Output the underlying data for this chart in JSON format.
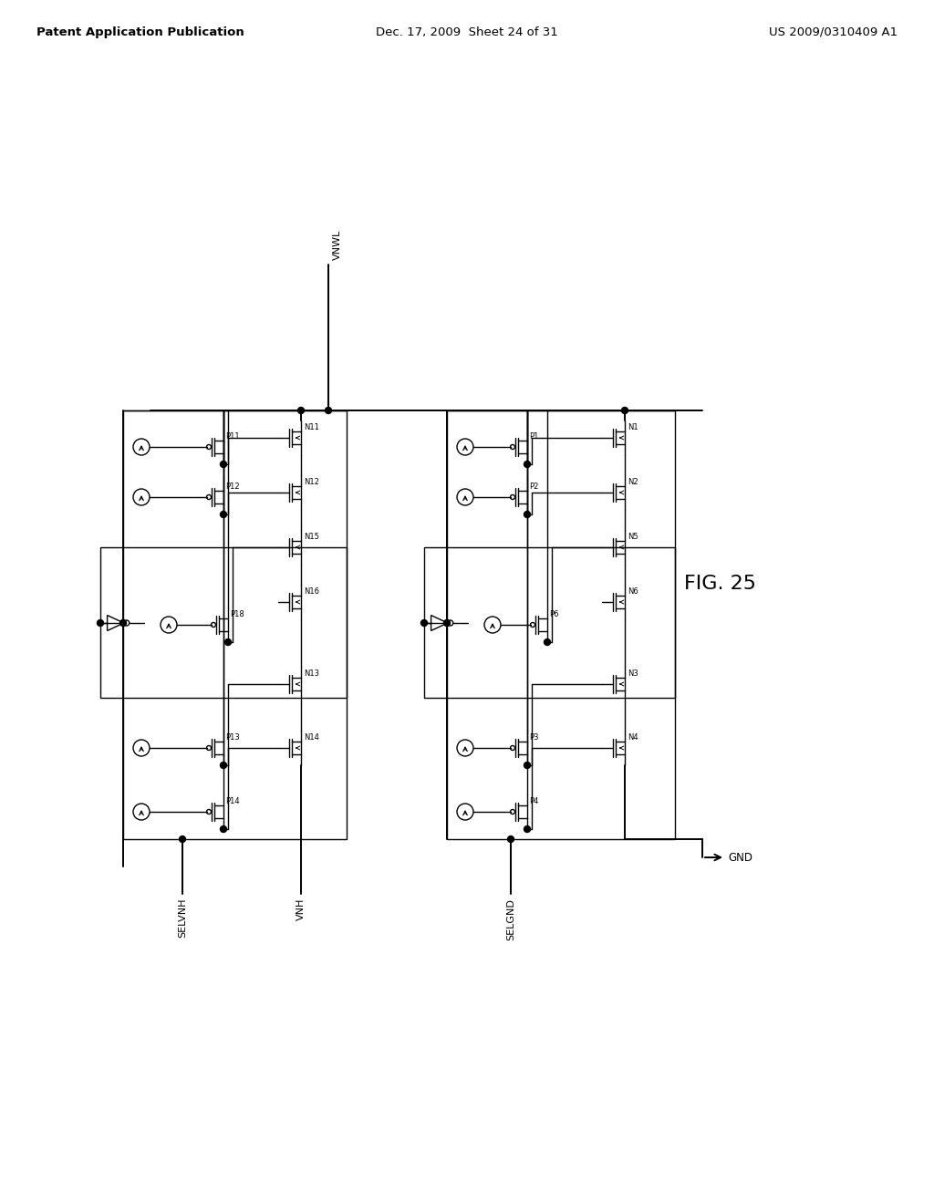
{
  "background_color": "#ffffff",
  "header_left": "Patent Application Publication",
  "header_center": "Dec. 17, 2009  Sheet 24 of 31",
  "header_right": "US 2009/0310409 A1",
  "fig_label": "FIG. 25"
}
